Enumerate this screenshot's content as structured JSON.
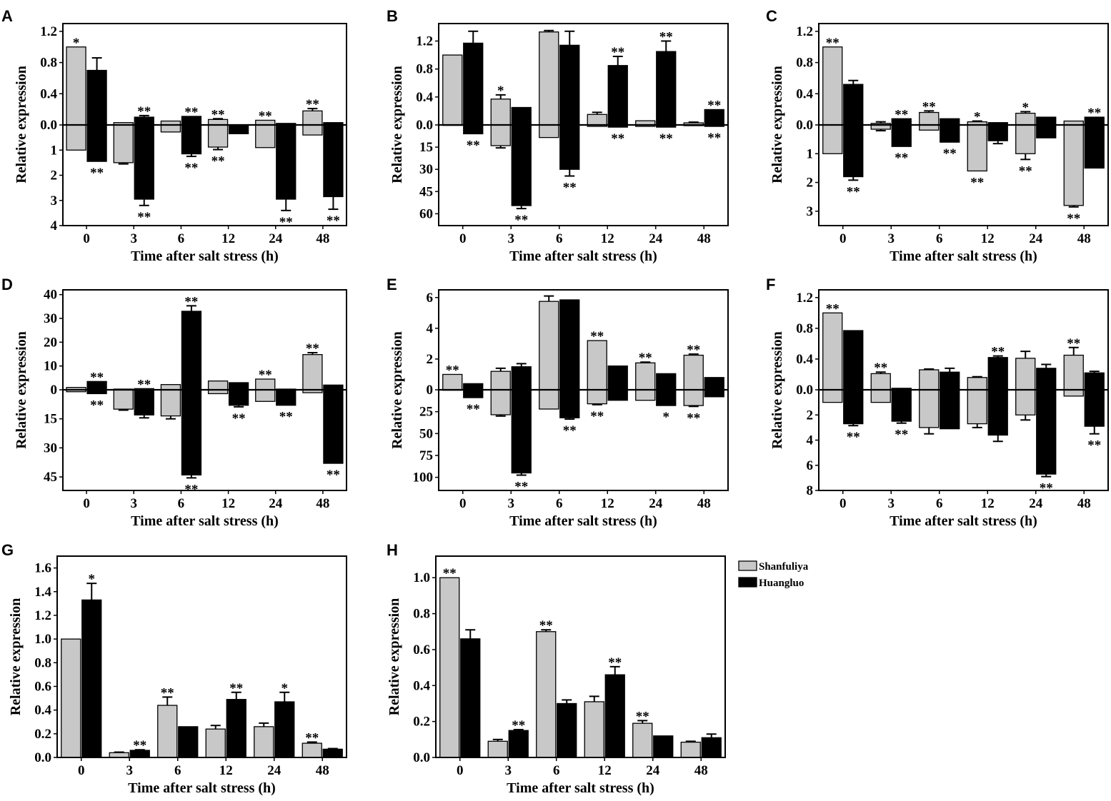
{
  "colors": {
    "shanfuliya": "#c8c8c8",
    "huangluo": "#000000"
  },
  "legend": [
    {
      "name": "Shanfuliya",
      "color": "#c8c8c8"
    },
    {
      "name": "Huangluo",
      "color": "#000000"
    }
  ],
  "chart_data": [
    {
      "panel": "A",
      "type": "bar",
      "split": true,
      "categories": [
        "0",
        "3",
        "6",
        "12",
        "24",
        "48"
      ],
      "ylabel": "Relative expression",
      "xlabel": "Time after salt stress (h)",
      "top_range": [
        0,
        1.3
      ],
      "top_ticks": [
        "0.0",
        "0.4",
        "0.8",
        "1.2"
      ],
      "bottom_range": [
        0,
        4
      ],
      "bottom_ticks": [
        "1",
        "2",
        "3",
        "4"
      ],
      "series": [
        {
          "name": "Shanfuliya",
          "up": [
            1.0,
            0.03,
            0.05,
            0.07,
            0.06,
            0.18
          ],
          "up_err": [
            0,
            0,
            0,
            0.01,
            0,
            0.03
          ],
          "down": [
            1.0,
            1.5,
            0.28,
            0.88,
            0.9,
            0.4
          ],
          "down_err": [
            0,
            0.05,
            0,
            0.1,
            0,
            0
          ],
          "up_star": [
            "*",
            "",
            "",
            "**",
            "**",
            "**"
          ],
          "down_star": [
            "",
            "",
            "",
            "**",
            "",
            ""
          ]
        },
        {
          "name": "Huangluo",
          "up": [
            0.7,
            0.1,
            0.11,
            0.0,
            0.02,
            0.03
          ],
          "up_err": [
            0.16,
            0.02,
            0,
            0,
            0,
            0
          ],
          "down": [
            1.45,
            2.95,
            1.15,
            0.35,
            2.95,
            2.85
          ],
          "down_err": [
            0,
            0.25,
            0.1,
            0,
            0.45,
            0.5
          ],
          "up_star": [
            "",
            "**",
            "**",
            "",
            "",
            ""
          ],
          "down_star": [
            "**",
            "**",
            "**",
            "",
            "**",
            "**"
          ]
        }
      ]
    },
    {
      "panel": "B",
      "type": "bar",
      "split": true,
      "categories": [
        "0",
        "3",
        "6",
        "12",
        "24",
        "48"
      ],
      "ylabel": "Relative expression",
      "xlabel": "Time after salt stress (h)",
      "top_range": [
        0,
        1.45
      ],
      "top_ticks": [
        "0.0",
        "0.4",
        "0.8",
        "1.2"
      ],
      "bottom_range": [
        0,
        68
      ],
      "bottom_ticks": [
        "15",
        "30",
        "45",
        "60"
      ],
      "series": [
        {
          "name": "Shanfuliya",
          "up": [
            1.0,
            0.37,
            1.33,
            0.15,
            0.06,
            0.03
          ],
          "up_err": [
            0,
            0.06,
            0.02,
            0.03,
            0,
            0.01
          ],
          "down": [
            0.3,
            14.0,
            8.5,
            1.0,
            1.0,
            0.5
          ],
          "down_err": [
            0,
            1.5,
            0,
            0,
            0,
            0
          ],
          "up_star": [
            "",
            "*",
            "",
            "",
            "",
            ""
          ],
          "down_star": [
            "",
            "",
            "",
            "",
            "",
            ""
          ]
        },
        {
          "name": "Huangluo",
          "up": [
            1.17,
            0.25,
            1.14,
            0.85,
            1.05,
            0.22
          ],
          "up_err": [
            0.17,
            0,
            0.2,
            0.13,
            0.15,
            0
          ],
          "down": [
            6.0,
            54.5,
            30.0,
            1.5,
            1.5,
            1.0
          ],
          "down_err": [
            0,
            2.0,
            4.5,
            0,
            0,
            0
          ],
          "up_star": [
            "",
            "",
            "",
            "**",
            "**",
            "**"
          ],
          "down_star": [
            "**",
            "**",
            "**",
            "**",
            "**",
            "**"
          ]
        }
      ]
    },
    {
      "panel": "C",
      "type": "bar",
      "split": true,
      "categories": [
        "0",
        "3",
        "6",
        "12",
        "24",
        "48"
      ],
      "ylabel": "Relative expression",
      "xlabel": "Time after salt stress (h)",
      "top_range": [
        0,
        1.3
      ],
      "top_ticks": [
        "0.0",
        "0.4",
        "0.8",
        "1.2"
      ],
      "bottom_range": [
        0,
        3.5
      ],
      "bottom_ticks": [
        "1",
        "2",
        "3"
      ],
      "series": [
        {
          "name": "Shanfuliya",
          "up": [
            1.0,
            0.02,
            0.16,
            0.04,
            0.15,
            0.05
          ],
          "up_err": [
            0,
            0.02,
            0.02,
            0.01,
            0.02,
            0
          ],
          "down": [
            1.0,
            0.15,
            0.18,
            1.6,
            1.0,
            2.8
          ],
          "down_err": [
            0,
            0.05,
            0,
            0,
            0.2,
            0.05
          ],
          "up_star": [
            "**",
            "",
            "**",
            "*",
            "*",
            ""
          ],
          "down_star": [
            "",
            "",
            "",
            "**",
            "**",
            "**"
          ]
        },
        {
          "name": "Huangluo",
          "up": [
            0.52,
            0.08,
            0.08,
            0.03,
            0.1,
            0.1
          ],
          "up_err": [
            0.05,
            0,
            0,
            0,
            0,
            0
          ],
          "down": [
            1.8,
            0.75,
            0.6,
            0.55,
            0.45,
            1.5
          ],
          "down_err": [
            0.12,
            0,
            0,
            0.1,
            0,
            0
          ],
          "up_star": [
            "",
            "**",
            "",
            "",
            "",
            "**"
          ],
          "down_star": [
            "**",
            "**",
            "**",
            "",
            "",
            ""
          ]
        }
      ]
    },
    {
      "panel": "D",
      "type": "bar",
      "split": true,
      "categories": [
        "0",
        "3",
        "6",
        "12",
        "24",
        "48"
      ],
      "ylabel": "Relative expression",
      "xlabel": "Time after salt stress (h)",
      "top_range": [
        0,
        42
      ],
      "top_ticks": [
        "0",
        "10",
        "20",
        "30",
        "40"
      ],
      "bottom_range": [
        0,
        52
      ],
      "bottom_ticks": [
        "15",
        "30",
        "45"
      ],
      "series": [
        {
          "name": "Shanfuliya",
          "up": [
            1.0,
            0.3,
            2.2,
            3.7,
            4.5,
            14.8
          ],
          "up_err": [
            0,
            0,
            0,
            0,
            0,
            0.8
          ],
          "down": [
            1.0,
            10.0,
            13.5,
            2.0,
            6.0,
            1.5
          ],
          "down_err": [
            0,
            0.5,
            1.5,
            0,
            0,
            0
          ],
          "up_star": [
            "",
            "",
            "",
            "",
            "**",
            "**"
          ],
          "down_star": [
            "",
            "",
            "",
            "",
            "",
            ""
          ]
        },
        {
          "name": "Huangluo",
          "up": [
            3.5,
            0.5,
            33.0,
            3.0,
            0.3,
            2.0
          ],
          "up_err": [
            0,
            0,
            2.3,
            0,
            0,
            0
          ],
          "down": [
            2.0,
            13.0,
            44.0,
            8.0,
            8.0,
            38.0
          ],
          "down_err": [
            0,
            1.5,
            1.5,
            0.8,
            0,
            0
          ],
          "up_star": [
            "**",
            "**",
            "**",
            "",
            "",
            ""
          ],
          "down_star": [
            "**",
            "",
            "**",
            "**",
            "**",
            "**"
          ]
        }
      ]
    },
    {
      "panel": "E",
      "type": "bar",
      "split": true,
      "categories": [
        "0",
        "3",
        "6",
        "12",
        "24",
        "48"
      ],
      "ylabel": "Relative expression",
      "xlabel": "Time after salt stress (h)",
      "top_range": [
        0,
        6.5
      ],
      "top_ticks": [
        "0",
        "2",
        "4",
        "6"
      ],
      "bottom_range": [
        0,
        115
      ],
      "bottom_ticks": [
        "25",
        "50",
        "75",
        "100"
      ],
      "series": [
        {
          "name": "Shanfuliya",
          "up": [
            1.0,
            1.2,
            5.75,
            3.2,
            1.75,
            2.25
          ],
          "up_err": [
            0,
            0.2,
            0.35,
            0,
            0.05,
            0.07
          ],
          "down": [
            0.5,
            28.5,
            22.0,
            16.0,
            12.0,
            18.0
          ],
          "down_err": [
            0,
            1.5,
            0,
            1.0,
            0,
            1.0
          ],
          "up_star": [
            "**",
            "",
            "",
            "**",
            "**",
            "**"
          ],
          "down_star": [
            "",
            "",
            "",
            "**",
            "",
            "**"
          ]
        },
        {
          "name": "Huangluo",
          "up": [
            0.4,
            1.5,
            5.85,
            1.55,
            1.05,
            0.8
          ],
          "up_err": [
            0,
            0.2,
            0,
            0,
            0,
            0
          ],
          "down": [
            9.0,
            95.0,
            32.0,
            12.0,
            18.0,
            8.0
          ],
          "down_err": [
            0,
            2.5,
            1.5,
            0,
            0,
            0
          ],
          "up_star": [
            "",
            "",
            "",
            "",
            "",
            ""
          ],
          "down_star": [
            "**",
            "**",
            "**",
            "",
            "*",
            ""
          ]
        }
      ]
    },
    {
      "panel": "F",
      "type": "bar",
      "split": true,
      "categories": [
        "0",
        "3",
        "6",
        "12",
        "24",
        "48"
      ],
      "ylabel": "Relative expression",
      "xlabel": "Time after salt stress (h)",
      "top_range": [
        0,
        1.3
      ],
      "top_ticks": [
        "0.0",
        "0.4",
        "0.8",
        "1.2"
      ],
      "bottom_range": [
        0,
        8
      ],
      "bottom_ticks": [
        "2",
        "4",
        "6",
        "8"
      ],
      "series": [
        {
          "name": "Shanfuliya",
          "up": [
            1.0,
            0.21,
            0.26,
            0.16,
            0.41,
            0.45
          ],
          "up_err": [
            0,
            0.02,
            0.01,
            0.01,
            0.09,
            0.1
          ],
          "down": [
            1.0,
            1.0,
            3.0,
            2.7,
            2.0,
            0.5
          ],
          "down_err": [
            0,
            0,
            0.5,
            0.3,
            0.4,
            0
          ],
          "up_star": [
            "**",
            "**",
            "",
            "",
            "",
            "**"
          ],
          "down_star": [
            "",
            "",
            "",
            "",
            "",
            ""
          ]
        },
        {
          "name": "Huangluo",
          "up": [
            0.77,
            0.02,
            0.23,
            0.42,
            0.28,
            0.22
          ],
          "up_err": [
            0,
            0,
            0.05,
            0.02,
            0.05,
            0.02
          ],
          "down": [
            2.7,
            2.5,
            3.1,
            3.6,
            6.7,
            2.9
          ],
          "down_err": [
            0.15,
            0.15,
            0,
            0.5,
            0.2,
            0.6
          ],
          "up_star": [
            "",
            "",
            "",
            "**",
            "",
            ""
          ],
          "down_star": [
            "**",
            "**",
            "",
            "",
            "**",
            "**"
          ]
        }
      ]
    },
    {
      "panel": "G",
      "type": "bar",
      "split": false,
      "categories": [
        "0",
        "3",
        "6",
        "12",
        "24",
        "48"
      ],
      "ylabel": "Relative expression",
      "xlabel": "Time after salt stress (h)",
      "ylim": [
        0,
        1.7
      ],
      "ticks": [
        "0.0",
        "0.2",
        "0.4",
        "0.6",
        "0.8",
        "1.0",
        "1.2",
        "1.4",
        "1.6"
      ],
      "series": [
        {
          "name": "Shanfuliya",
          "values": [
            1.0,
            0.04,
            0.44,
            0.24,
            0.26,
            0.12
          ],
          "err": [
            0,
            0.005,
            0.07,
            0.03,
            0.03,
            0.01
          ],
          "star": [
            "",
            "",
            "**",
            "",
            "",
            "**"
          ]
        },
        {
          "name": "Huangluo",
          "values": [
            1.33,
            0.06,
            0.26,
            0.49,
            0.47,
            0.07
          ],
          "err": [
            0.14,
            0.005,
            0,
            0.06,
            0.08,
            0.005
          ],
          "star": [
            "*",
            "**",
            "",
            "**",
            "*",
            ""
          ]
        }
      ]
    },
    {
      "panel": "H",
      "type": "bar",
      "split": false,
      "categories": [
        "0",
        "3",
        "6",
        "12",
        "24",
        "48"
      ],
      "ylabel": "Relative expression",
      "xlabel": "Time after salt stress (h)",
      "ylim": [
        0,
        1.12
      ],
      "ticks": [
        "0.0",
        "0.2",
        "0.4",
        "0.6",
        "0.8",
        "1.0"
      ],
      "series": [
        {
          "name": "Shanfuliya",
          "values": [
            1.0,
            0.09,
            0.7,
            0.31,
            0.19,
            0.085
          ],
          "err": [
            0,
            0.01,
            0.01,
            0.03,
            0.015,
            0.005
          ],
          "star": [
            "**",
            "",
            "**",
            "",
            "**",
            ""
          ]
        },
        {
          "name": "Huangluo",
          "values": [
            0.66,
            0.15,
            0.3,
            0.46,
            0.12,
            0.11
          ],
          "err": [
            0.05,
            0.005,
            0.02,
            0.045,
            0,
            0.02
          ],
          "star": [
            "",
            "**",
            "",
            "**",
            "",
            ""
          ]
        }
      ]
    }
  ]
}
